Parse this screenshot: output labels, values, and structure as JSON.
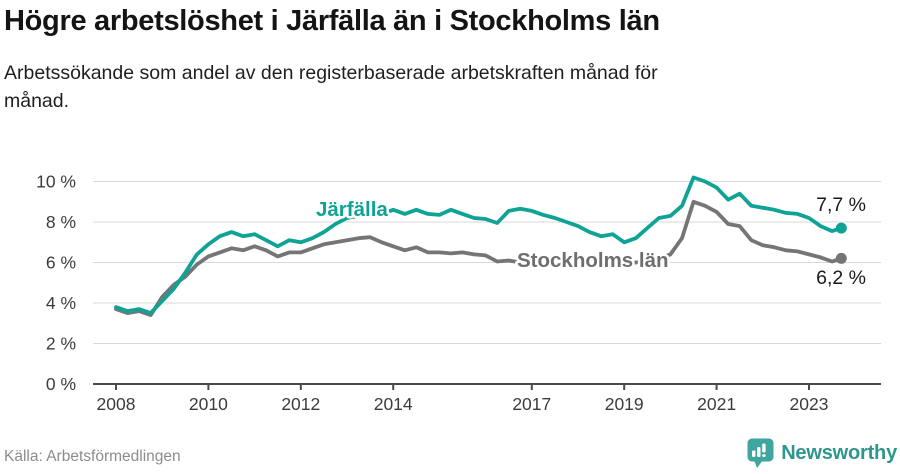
{
  "header": {
    "title": "Högre arbetslöshet i Järfälla än i Stockholms län",
    "subtitle_lines": [
      "Arbetssökande som andel av den registerbaserade arbetskraften månad för",
      "månad."
    ]
  },
  "footer": {
    "source": "Källa: Arbetsförmedlingen",
    "brand": "Newsworthy"
  },
  "colors": {
    "background": "#ffffff",
    "title_text": "#141414",
    "body_text": "#1f1f1f",
    "grid": "#d9d9d9",
    "axis": "#4a4a4a",
    "tick_text": "#3c3c3c",
    "value_label_text": "#1a1a1a",
    "source_text": "#8c8c8c",
    "jarfalla_teal": "#0fa396",
    "stockholm_gray": "#757575",
    "stockholm_label_gray": "#6e6e6e",
    "brand_icon_teal": "#3ea69e",
    "brand_text_teal": "#2e968e"
  },
  "chart_data": {
    "type": "line",
    "title": "Högre arbetslöshet i Järfälla än i Stockholms län",
    "subtitle": "Arbetssökande som andel av den registerbaserade arbetskraften månad för månad.",
    "x": [
      2008.0,
      2008.25,
      2008.5,
      2008.75,
      2009.0,
      2009.25,
      2009.5,
      2009.75,
      2010.0,
      2010.25,
      2010.5,
      2010.75,
      2011.0,
      2011.25,
      2011.5,
      2011.75,
      2012.0,
      2012.25,
      2012.5,
      2012.75,
      2013.0,
      2013.25,
      2013.5,
      2013.75,
      2014.0,
      2014.25,
      2014.5,
      2014.75,
      2015.0,
      2015.25,
      2015.5,
      2015.75,
      2016.0,
      2016.25,
      2016.5,
      2016.75,
      2017.0,
      2017.25,
      2017.5,
      2017.75,
      2018.0,
      2018.25,
      2018.5,
      2018.75,
      2019.0,
      2019.25,
      2019.5,
      2019.75,
      2020.0,
      2020.25,
      2020.5,
      2020.75,
      2021.0,
      2021.25,
      2021.5,
      2021.75,
      2022.0,
      2022.25,
      2022.5,
      2022.75,
      2023.0,
      2023.25,
      2023.5,
      2023.7
    ],
    "series": [
      {
        "name": "Järfälla",
        "color": "#0fa396",
        "label_color": "#0fa396",
        "end_label": "7,7 %",
        "end_value": 7.7,
        "values": [
          3.8,
          3.6,
          3.7,
          3.5,
          4.1,
          4.7,
          5.5,
          6.4,
          6.9,
          7.3,
          7.5,
          7.3,
          7.4,
          7.1,
          6.8,
          7.1,
          7.0,
          7.2,
          7.5,
          7.9,
          8.2,
          8.3,
          8.5,
          8.4,
          8.6,
          8.4,
          8.6,
          8.4,
          8.35,
          8.6,
          8.4,
          8.2,
          8.15,
          7.95,
          8.55,
          8.65,
          8.55,
          8.35,
          8.2,
          8.0,
          7.8,
          7.5,
          7.3,
          7.4,
          7.0,
          7.2,
          7.7,
          8.2,
          8.3,
          8.8,
          10.2,
          10.0,
          9.7,
          9.1,
          9.4,
          8.8,
          8.7,
          8.6,
          8.45,
          8.4,
          8.2,
          7.8,
          7.55,
          7.7
        ]
      },
      {
        "name": "Stockholms län",
        "color": "#757575",
        "label_color": "#6e6e6e",
        "end_label": "6,2 %",
        "end_value": 6.2,
        "values": [
          3.7,
          3.5,
          3.6,
          3.4,
          4.3,
          4.9,
          5.3,
          5.9,
          6.3,
          6.5,
          6.7,
          6.6,
          6.8,
          6.6,
          6.3,
          6.5,
          6.5,
          6.7,
          6.9,
          7.0,
          7.1,
          7.2,
          7.25,
          7.0,
          6.8,
          6.6,
          6.75,
          6.5,
          6.5,
          6.45,
          6.5,
          6.4,
          6.35,
          6.05,
          6.1,
          6.0,
          6.0,
          5.95,
          5.9,
          5.9,
          5.85,
          5.9,
          5.85,
          5.9,
          5.9,
          6.0,
          6.1,
          6.2,
          6.4,
          7.2,
          9.0,
          8.8,
          8.5,
          7.9,
          7.8,
          7.1,
          6.85,
          6.75,
          6.6,
          6.55,
          6.4,
          6.25,
          6.05,
          6.2
        ]
      }
    ],
    "yticks": [
      0,
      2,
      4,
      6,
      8,
      10
    ],
    "ytick_suffix": " %",
    "xticks": [
      2008,
      2010,
      2012,
      2014,
      2017,
      2019,
      2021,
      2023
    ],
    "ylim": [
      0,
      10.5
    ],
    "xlim": [
      2008,
      2023.9
    ],
    "grid": true,
    "legend": "direct-labels-on-chart"
  }
}
